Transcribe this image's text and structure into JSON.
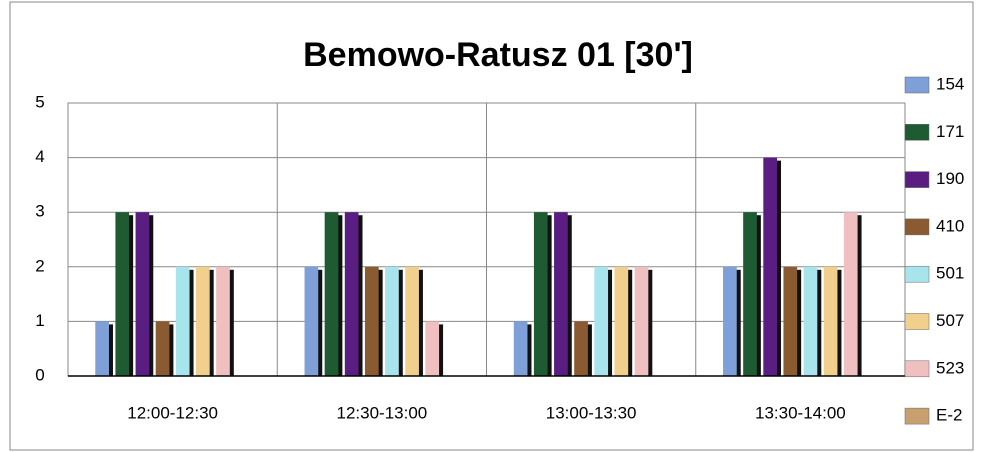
{
  "chart_data": {
    "type": "bar",
    "title": "Bemowo-Ratusz 01 [30']",
    "categories": [
      "12:00-12:30",
      "12:30-13:00",
      "13:00-13:30",
      "13:30-14:00"
    ],
    "series": [
      {
        "name": "154",
        "color": "#7f9fd8",
        "values": [
          1,
          2,
          1,
          2
        ]
      },
      {
        "name": "171",
        "color": "#1e5a32",
        "values": [
          3,
          3,
          3,
          3
        ]
      },
      {
        "name": "190",
        "color": "#5a1e82",
        "values": [
          3,
          3,
          3,
          4
        ]
      },
      {
        "name": "410",
        "color": "#8a5a30",
        "values": [
          1,
          2,
          1,
          2
        ]
      },
      {
        "name": "501",
        "color": "#a8e4ec",
        "values": [
          2,
          2,
          2,
          2
        ]
      },
      {
        "name": "507",
        "color": "#f0d08c",
        "values": [
          2,
          2,
          2,
          2
        ]
      },
      {
        "name": "523",
        "color": "#f0c0c0",
        "values": [
          2,
          1,
          2,
          3
        ]
      },
      {
        "name": "E-2",
        "color": "#c8a070",
        "values": [
          0,
          0,
          0,
          0
        ]
      }
    ],
    "ylim": [
      0,
      5
    ],
    "yticks": [
      0,
      1,
      2,
      3,
      4,
      5
    ],
    "grid": true,
    "legend": "right"
  }
}
